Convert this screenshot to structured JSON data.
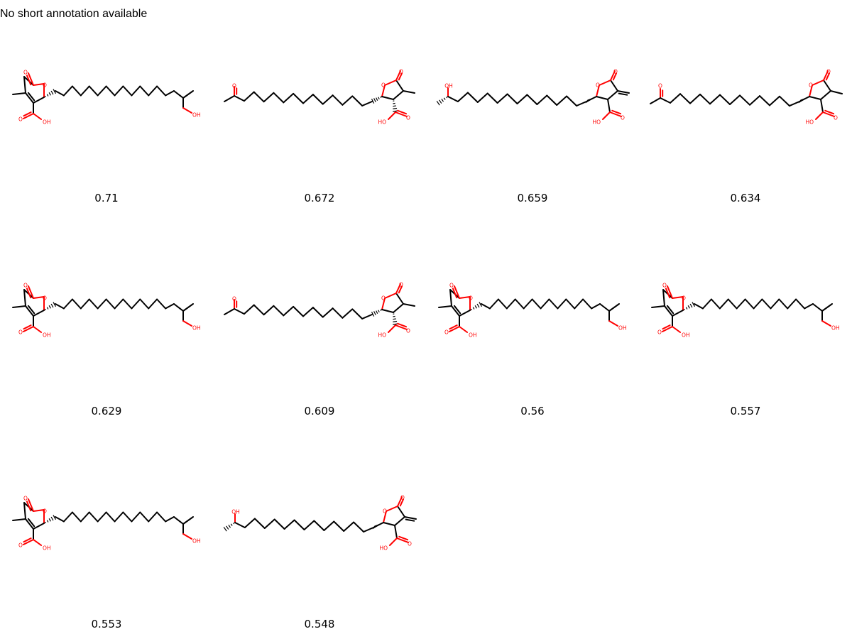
{
  "annotation": "No short annotation available",
  "colors": {
    "bond": "#000000",
    "heteroatom": "#ff0000",
    "background": "#ffffff"
  },
  "atom_labels": {
    "oxygen": "O",
    "hydroxyl": "OH",
    "hydroxyl_left": "HO"
  },
  "molecules": [
    {
      "type": "A",
      "score": "0.71"
    },
    {
      "type": "B",
      "score": "0.672"
    },
    {
      "type": "C",
      "score": "0.659"
    },
    {
      "type": "D",
      "score": "0.634"
    },
    {
      "type": "A",
      "score": "0.629"
    },
    {
      "type": "B",
      "score": "0.609"
    },
    {
      "type": "A",
      "score": "0.56"
    },
    {
      "type": "A",
      "score": "0.557"
    },
    {
      "type": "A",
      "score": "0.553"
    },
    {
      "type": "C",
      "score": "0.548"
    }
  ]
}
